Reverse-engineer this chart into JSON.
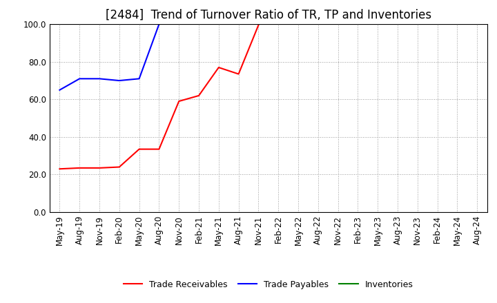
{
  "title": "[2484]  Trend of Turnover Ratio of TR, TP and Inventories",
  "x_labels": [
    "May-19",
    "Aug-19",
    "Nov-19",
    "Feb-20",
    "May-20",
    "Aug-20",
    "Nov-20",
    "Feb-21",
    "May-21",
    "Aug-21",
    "Nov-21",
    "Feb-22",
    "May-22",
    "Aug-22",
    "Nov-22",
    "Feb-23",
    "May-23",
    "Aug-23",
    "Nov-23",
    "Feb-24",
    "May-24",
    "Aug-24"
  ],
  "trade_receivables": [
    23.0,
    23.5,
    23.5,
    24.0,
    33.5,
    33.5,
    59.0,
    62.0,
    77.0,
    73.5,
    99.5,
    null,
    null,
    null,
    null,
    null,
    null,
    null,
    null,
    null,
    null,
    null
  ],
  "trade_payables": [
    65.0,
    71.0,
    71.0,
    70.0,
    71.0,
    100.0,
    null,
    null,
    null,
    null,
    null,
    null,
    null,
    null,
    null,
    null,
    null,
    null,
    null,
    null,
    null,
    null
  ],
  "inventories": [
    null,
    null,
    null,
    null,
    null,
    null,
    null,
    null,
    null,
    null,
    null,
    null,
    null,
    null,
    null,
    null,
    null,
    null,
    null,
    null,
    null,
    null
  ],
  "ylim": [
    0.0,
    100.0
  ],
  "yticks": [
    0.0,
    20.0,
    40.0,
    60.0,
    80.0,
    100.0
  ],
  "tr_color": "#FF0000",
  "tp_color": "#0000FF",
  "inv_color": "#008000",
  "background_color": "#FFFFFF",
  "grid_color": "#999999",
  "legend_labels": [
    "Trade Receivables",
    "Trade Payables",
    "Inventories"
  ],
  "title_fontsize": 12,
  "axis_fontsize": 8.5
}
